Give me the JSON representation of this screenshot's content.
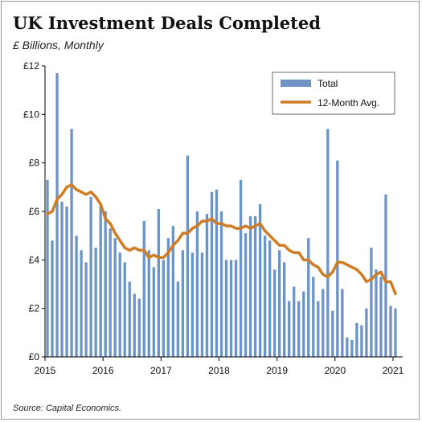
{
  "title": "UK Investment Deals Completed",
  "subtitle": "£ Billions, Monthly",
  "source": "Source: Capital Economics.",
  "chart_data": {
    "type": "bar",
    "ylim": [
      0,
      12
    ],
    "y_ticks": [
      0,
      2,
      4,
      6,
      8,
      10,
      12
    ],
    "y_tick_labels": [
      "£0",
      "£2",
      "£4",
      "£6",
      "£8",
      "£10",
      "£12"
    ],
    "x_ticks": [
      "2015",
      "2016",
      "2017",
      "2018",
      "2019",
      "2020",
      "2021"
    ],
    "start": "2015-01",
    "end": "2021-02",
    "grid": false,
    "legend_position": "top-right",
    "colors": {
      "bar": "#6f93c2",
      "line": "#cf7c24",
      "axis": "#000000"
    },
    "series": [
      {
        "name": "Total",
        "type": "bar",
        "values": [
          7.3,
          4.8,
          11.7,
          6.4,
          6.2,
          9.4,
          5.0,
          4.4,
          3.9,
          6.6,
          4.5,
          6.3,
          6.0,
          5.3,
          4.9,
          4.3,
          3.9,
          3.1,
          2.6,
          2.4,
          5.6,
          4.4,
          3.7,
          6.1,
          4.0,
          4.9,
          5.4,
          3.1,
          4.4,
          8.3,
          4.3,
          6.0,
          4.3,
          5.9,
          6.8,
          6.9,
          6.0,
          4.0,
          4.0,
          4.0,
          7.3,
          5.1,
          5.8,
          5.8,
          6.3,
          5.0,
          4.8,
          3.6,
          4.4,
          3.9,
          2.3,
          2.9,
          2.3,
          2.7,
          4.9,
          3.3,
          2.3,
          2.8,
          9.4,
          1.9,
          8.1,
          2.8,
          0.8,
          0.7,
          1.4,
          1.3,
          2.0,
          4.5,
          3.6,
          3.3,
          6.7,
          2.1,
          2.0
        ]
      },
      {
        "name": "12-Month Avg.",
        "type": "line",
        "values": [
          5.9,
          6.0,
          6.5,
          6.7,
          7.0,
          7.1,
          6.9,
          6.8,
          6.7,
          6.8,
          6.6,
          6.3,
          5.7,
          5.5,
          5.1,
          4.8,
          4.5,
          4.4,
          4.5,
          4.4,
          4.4,
          4.1,
          4.2,
          4.1,
          4.1,
          4.3,
          4.6,
          4.8,
          5.1,
          5.1,
          5.3,
          5.4,
          5.6,
          5.6,
          5.7,
          5.5,
          5.5,
          5.4,
          5.4,
          5.3,
          5.3,
          5.4,
          5.3,
          5.4,
          5.5,
          5.2,
          5.0,
          4.8,
          4.6,
          4.6,
          4.4,
          4.3,
          4.3,
          4.0,
          4.0,
          3.8,
          3.7,
          3.4,
          3.3,
          3.5,
          3.9,
          3.9,
          3.8,
          3.7,
          3.6,
          3.4,
          3.1,
          3.2,
          3.4,
          3.5,
          3.1,
          3.1,
          2.6
        ]
      }
    ]
  }
}
